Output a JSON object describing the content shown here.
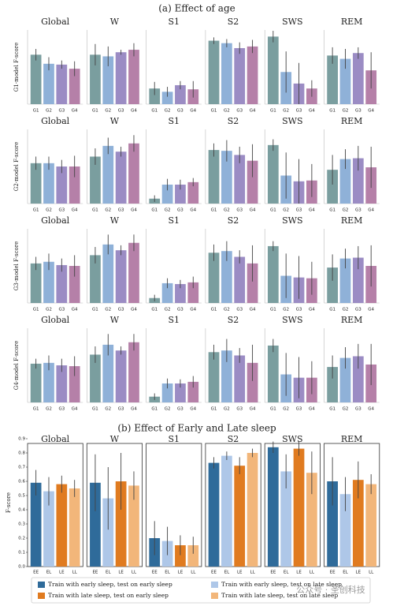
{
  "section_titles": [
    "(a) Effect of age",
    "(b) Effect of Early and Late sleep"
  ],
  "watermark": "公众号 · 圣创科技",
  "legend": {
    "entries": [
      {
        "name": "Train with early sleep, test on early sleep",
        "color": "#2f6b9a"
      },
      {
        "name": "Train with early sleep, test on late sleep",
        "color": "#aec7e8"
      },
      {
        "name": "Train with late sleep, test on early sleep",
        "color": "#e07b20"
      },
      {
        "name": "Train with late sleep, test on late sleep",
        "color": "#f2b67a"
      }
    ]
  },
  "chart_data": [
    {
      "type": "bar",
      "title": "Global",
      "ylabel": "G1-model F-score",
      "categories": [
        "G1",
        "G2",
        "G3",
        "G4"
      ],
      "values": [
        0.6,
        0.49,
        0.48,
        0.43
      ],
      "errors": [
        0.07,
        0.08,
        0.05,
        0.09
      ],
      "colors": [
        "#7a9e9f",
        "#8fb1d8",
        "#9b8cc4",
        "#b580a8"
      ],
      "ylim": [
        0,
        0.9
      ]
    },
    {
      "type": "bar",
      "title": "W",
      "categories": [
        "G1",
        "G2",
        "G3",
        "G4"
      ],
      "values": [
        0.6,
        0.58,
        0.63,
        0.66
      ],
      "errors": [
        0.13,
        0.12,
        0.03,
        0.08
      ],
      "colors": [
        "#7a9e9f",
        "#8fb1d8",
        "#9b8cc4",
        "#b580a8"
      ],
      "ylim": [
        0,
        0.9
      ]
    },
    {
      "type": "bar",
      "title": "S1",
      "categories": [
        "G1",
        "G2",
        "G3",
        "G4"
      ],
      "values": [
        0.19,
        0.15,
        0.23,
        0.18
      ],
      "errors": [
        0.08,
        0.06,
        0.05,
        0.1
      ],
      "colors": [
        "#7a9e9f",
        "#8fb1d8",
        "#9b8cc4",
        "#b580a8"
      ],
      "ylim": [
        0,
        0.9
      ]
    },
    {
      "type": "bar",
      "title": "S2",
      "categories": [
        "G1",
        "G2",
        "G3",
        "G4"
      ],
      "values": [
        0.77,
        0.74,
        0.68,
        0.7
      ],
      "errors": [
        0.04,
        0.05,
        0.07,
        0.08
      ],
      "colors": [
        "#7a9e9f",
        "#8fb1d8",
        "#9b8cc4",
        "#b580a8"
      ],
      "ylim": [
        0,
        0.9
      ]
    },
    {
      "type": "bar",
      "title": "SWS",
      "categories": [
        "G1",
        "G2",
        "G3",
        "G4"
      ],
      "values": [
        0.82,
        0.39,
        0.25,
        0.19
      ],
      "errors": [
        0.07,
        0.25,
        0.25,
        0.1
      ],
      "colors": [
        "#7a9e9f",
        "#8fb1d8",
        "#9b8cc4",
        "#b580a8"
      ],
      "ylim": [
        0,
        0.9
      ]
    },
    {
      "type": "bar",
      "title": "REM",
      "categories": [
        "G1",
        "G2",
        "G3",
        "G4"
      ],
      "values": [
        0.59,
        0.55,
        0.62,
        0.41
      ],
      "errors": [
        0.1,
        0.12,
        0.07,
        0.22
      ],
      "colors": [
        "#7a9e9f",
        "#8fb1d8",
        "#9b8cc4",
        "#b580a8"
      ],
      "ylim": [
        0,
        0.9
      ]
    },
    {
      "type": "bar",
      "title": "Global",
      "ylabel": "G2-model F-score",
      "categories": [
        "G1",
        "G2",
        "G3",
        "G4"
      ],
      "values": [
        0.49,
        0.49,
        0.45,
        0.45
      ],
      "errors": [
        0.08,
        0.08,
        0.08,
        0.13
      ],
      "colors": [
        "#7a9e9f",
        "#8fb1d8",
        "#9b8cc4",
        "#b580a8"
      ],
      "ylim": [
        0,
        0.9
      ]
    },
    {
      "type": "bar",
      "title": "W",
      "categories": [
        "G1",
        "G2",
        "G3",
        "G4"
      ],
      "values": [
        0.57,
        0.7,
        0.63,
        0.73
      ],
      "errors": [
        0.1,
        0.1,
        0.06,
        0.1
      ],
      "colors": [
        "#7a9e9f",
        "#8fb1d8",
        "#9b8cc4",
        "#b580a8"
      ],
      "ylim": [
        0,
        0.9
      ]
    },
    {
      "type": "bar",
      "title": "S1",
      "categories": [
        "G1",
        "G2",
        "G3",
        "G4"
      ],
      "values": [
        0.06,
        0.23,
        0.23,
        0.26
      ],
      "errors": [
        0.04,
        0.07,
        0.06,
        0.05
      ],
      "colors": [
        "#7a9e9f",
        "#8fb1d8",
        "#9b8cc4",
        "#b580a8"
      ],
      "ylim": [
        0,
        0.9
      ]
    },
    {
      "type": "bar",
      "title": "S2",
      "categories": [
        "G1",
        "G2",
        "G3",
        "G4"
      ],
      "values": [
        0.65,
        0.64,
        0.59,
        0.52
      ],
      "errors": [
        0.08,
        0.13,
        0.1,
        0.2
      ],
      "colors": [
        "#7a9e9f",
        "#8fb1d8",
        "#9b8cc4",
        "#b580a8"
      ],
      "ylim": [
        0,
        0.9
      ]
    },
    {
      "type": "bar",
      "title": "SWS",
      "categories": [
        "G1",
        "G2",
        "G3",
        "G4"
      ],
      "values": [
        0.71,
        0.34,
        0.27,
        0.28
      ],
      "errors": [
        0.07,
        0.28,
        0.27,
        0.2
      ],
      "colors": [
        "#7a9e9f",
        "#8fb1d8",
        "#9b8cc4",
        "#b580a8"
      ],
      "ylim": [
        0,
        0.9
      ]
    },
    {
      "type": "bar",
      "title": "REM",
      "categories": [
        "G1",
        "G2",
        "G3",
        "G4"
      ],
      "values": [
        0.41,
        0.54,
        0.55,
        0.44
      ],
      "errors": [
        0.18,
        0.12,
        0.15,
        0.25
      ],
      "colors": [
        "#7a9e9f",
        "#8fb1d8",
        "#9b8cc4",
        "#b580a8"
      ],
      "ylim": [
        0,
        0.9
      ]
    },
    {
      "type": "bar",
      "title": "Global",
      "ylabel": "G3-model F-score",
      "categories": [
        "G1",
        "G2",
        "G3",
        "G4"
      ],
      "values": [
        0.48,
        0.5,
        0.46,
        0.45
      ],
      "errors": [
        0.08,
        0.1,
        0.08,
        0.13
      ],
      "colors": [
        "#7a9e9f",
        "#8fb1d8",
        "#9b8cc4",
        "#b580a8"
      ],
      "ylim": [
        0,
        0.9
      ]
    },
    {
      "type": "bar",
      "title": "W",
      "categories": [
        "G1",
        "G2",
        "G3",
        "G4"
      ],
      "values": [
        0.58,
        0.71,
        0.64,
        0.73
      ],
      "errors": [
        0.1,
        0.12,
        0.06,
        0.1
      ],
      "colors": [
        "#7a9e9f",
        "#8fb1d8",
        "#9b8cc4",
        "#b580a8"
      ],
      "ylim": [
        0,
        0.9
      ]
    },
    {
      "type": "bar",
      "title": "S1",
      "categories": [
        "G1",
        "G2",
        "G3",
        "G4"
      ],
      "values": [
        0.06,
        0.24,
        0.23,
        0.25
      ],
      "errors": [
        0.04,
        0.06,
        0.05,
        0.07
      ],
      "colors": [
        "#7a9e9f",
        "#8fb1d8",
        "#9b8cc4",
        "#b580a8"
      ],
      "ylim": [
        0,
        0.9
      ]
    },
    {
      "type": "bar",
      "title": "S2",
      "categories": [
        "G1",
        "G2",
        "G3",
        "G4"
      ],
      "values": [
        0.61,
        0.63,
        0.56,
        0.48
      ],
      "errors": [
        0.1,
        0.12,
        0.08,
        0.22
      ],
      "colors": [
        "#7a9e9f",
        "#8fb1d8",
        "#9b8cc4",
        "#b580a8"
      ],
      "ylim": [
        0,
        0.9
      ]
    },
    {
      "type": "bar",
      "title": "SWS",
      "categories": [
        "G1",
        "G2",
        "G3",
        "G4"
      ],
      "values": [
        0.69,
        0.33,
        0.31,
        0.3
      ],
      "errors": [
        0.06,
        0.27,
        0.26,
        0.2
      ],
      "colors": [
        "#7a9e9f",
        "#8fb1d8",
        "#9b8cc4",
        "#b580a8"
      ],
      "ylim": [
        0,
        0.9
      ]
    },
    {
      "type": "bar",
      "title": "REM",
      "categories": [
        "G1",
        "G2",
        "G3",
        "G4"
      ],
      "values": [
        0.43,
        0.54,
        0.55,
        0.45
      ],
      "errors": [
        0.16,
        0.12,
        0.14,
        0.25
      ],
      "colors": [
        "#7a9e9f",
        "#8fb1d8",
        "#9b8cc4",
        "#b580a8"
      ],
      "ylim": [
        0,
        0.9
      ]
    },
    {
      "type": "bar",
      "title": "Global",
      "ylabel": "G4-model F-score",
      "categories": [
        "G1",
        "G2",
        "G3",
        "G4"
      ],
      "values": [
        0.47,
        0.48,
        0.45,
        0.44
      ],
      "errors": [
        0.06,
        0.09,
        0.08,
        0.12
      ],
      "colors": [
        "#7a9e9f",
        "#8fb1d8",
        "#9b8cc4",
        "#b580a8"
      ],
      "ylim": [
        0,
        0.9
      ]
    },
    {
      "type": "bar",
      "title": "W",
      "categories": [
        "G1",
        "G2",
        "G3",
        "G4"
      ],
      "values": [
        0.58,
        0.7,
        0.63,
        0.73
      ],
      "errors": [
        0.1,
        0.13,
        0.05,
        0.1
      ],
      "colors": [
        "#7a9e9f",
        "#8fb1d8",
        "#9b8cc4",
        "#b580a8"
      ],
      "ylim": [
        0,
        0.9
      ]
    },
    {
      "type": "bar",
      "title": "S1",
      "categories": [
        "G1",
        "G2",
        "G3",
        "G4"
      ],
      "values": [
        0.07,
        0.23,
        0.23,
        0.25
      ],
      "errors": [
        0.04,
        0.06,
        0.05,
        0.07
      ],
      "colors": [
        "#7a9e9f",
        "#8fb1d8",
        "#9b8cc4",
        "#b580a8"
      ],
      "ylim": [
        0,
        0.9
      ]
    },
    {
      "type": "bar",
      "title": "S2",
      "categories": [
        "G1",
        "G2",
        "G3",
        "G4"
      ],
      "values": [
        0.61,
        0.63,
        0.57,
        0.48
      ],
      "errors": [
        0.09,
        0.14,
        0.09,
        0.22
      ],
      "colors": [
        "#7a9e9f",
        "#8fb1d8",
        "#9b8cc4",
        "#b580a8"
      ],
      "ylim": [
        0,
        0.9
      ]
    },
    {
      "type": "bar",
      "title": "SWS",
      "categories": [
        "G1",
        "G2",
        "G3",
        "G4"
      ],
      "values": [
        0.69,
        0.34,
        0.3,
        0.3
      ],
      "errors": [
        0.08,
        0.26,
        0.25,
        0.2
      ],
      "colors": [
        "#7a9e9f",
        "#8fb1d8",
        "#9b8cc4",
        "#b580a8"
      ],
      "ylim": [
        0,
        0.9
      ]
    },
    {
      "type": "bar",
      "title": "REM",
      "categories": [
        "G1",
        "G2",
        "G3",
        "G4"
      ],
      "values": [
        0.43,
        0.54,
        0.56,
        0.46
      ],
      "errors": [
        0.14,
        0.13,
        0.15,
        0.25
      ],
      "colors": [
        "#7a9e9f",
        "#8fb1d8",
        "#9b8cc4",
        "#b580a8"
      ],
      "ylim": [
        0,
        0.9
      ]
    },
    {
      "type": "bar",
      "title": "Global",
      "ylabel": "F-score",
      "categories": [
        "EE",
        "EL",
        "LE",
        "LL"
      ],
      "values": [
        0.59,
        0.53,
        0.58,
        0.55
      ],
      "errors": [
        0.09,
        0.1,
        0.06,
        0.06
      ],
      "colors": [
        "#2f6b9a",
        "#aec7e8",
        "#e07b20",
        "#f2b67a"
      ],
      "ylim": [
        0,
        0.9
      ],
      "yticks": [
        {
          "value": 0,
          "label": "0.0"
        },
        {
          "value": 0.1,
          "label": "0.1"
        },
        {
          "value": 0.2,
          "label": "0.2"
        },
        {
          "value": 0.3,
          "label": "0.3"
        },
        {
          "value": 0.4,
          "label": "0.4"
        },
        {
          "value": 0.5,
          "label": "0.5"
        },
        {
          "value": 0.6,
          "label": "0.6"
        },
        {
          "value": 0.7,
          "label": "0.7"
        },
        {
          "value": 0.8,
          "label": "0.8"
        },
        {
          "value": 0.9,
          "label": "0.9"
        }
      ]
    },
    {
      "type": "bar",
      "title": "W",
      "categories": [
        "EE",
        "EL",
        "LE",
        "LL"
      ],
      "values": [
        0.59,
        0.48,
        0.6,
        0.57
      ],
      "errors": [
        0.2,
        0.22,
        0.2,
        0.1
      ],
      "colors": [
        "#2f6b9a",
        "#aec7e8",
        "#e07b20",
        "#f2b67a"
      ],
      "ylim": [
        0,
        0.9
      ]
    },
    {
      "type": "bar",
      "title": "S1",
      "categories": [
        "EE",
        "EL",
        "LE",
        "LL"
      ],
      "values": [
        0.2,
        0.18,
        0.15,
        0.15
      ],
      "errors": [
        0.12,
        0.1,
        0.07,
        0.06
      ],
      "colors": [
        "#2f6b9a",
        "#aec7e8",
        "#e07b20",
        "#f2b67a"
      ],
      "ylim": [
        0,
        0.9
      ]
    },
    {
      "type": "bar",
      "title": "S2",
      "categories": [
        "EE",
        "EL",
        "LE",
        "LL"
      ],
      "values": [
        0.73,
        0.78,
        0.71,
        0.8
      ],
      "errors": [
        0.04,
        0.03,
        0.06,
        0.03
      ],
      "colors": [
        "#2f6b9a",
        "#aec7e8",
        "#e07b20",
        "#f2b67a"
      ],
      "ylim": [
        0,
        0.9
      ]
    },
    {
      "type": "bar",
      "title": "SWS",
      "categories": [
        "EE",
        "EL",
        "LE",
        "LL"
      ],
      "values": [
        0.84,
        0.67,
        0.83,
        0.66
      ],
      "errors": [
        0.04,
        0.12,
        0.05,
        0.15
      ],
      "colors": [
        "#2f6b9a",
        "#aec7e8",
        "#e07b20",
        "#f2b67a"
      ],
      "ylim": [
        0,
        0.9
      ]
    },
    {
      "type": "bar",
      "title": "REM",
      "categories": [
        "EE",
        "EL",
        "LE",
        "LL"
      ],
      "values": [
        0.6,
        0.51,
        0.61,
        0.58
      ],
      "errors": [
        0.17,
        0.12,
        0.13,
        0.07
      ],
      "colors": [
        "#2f6b9a",
        "#aec7e8",
        "#e07b20",
        "#f2b67a"
      ],
      "ylim": [
        0,
        0.9
      ]
    }
  ]
}
